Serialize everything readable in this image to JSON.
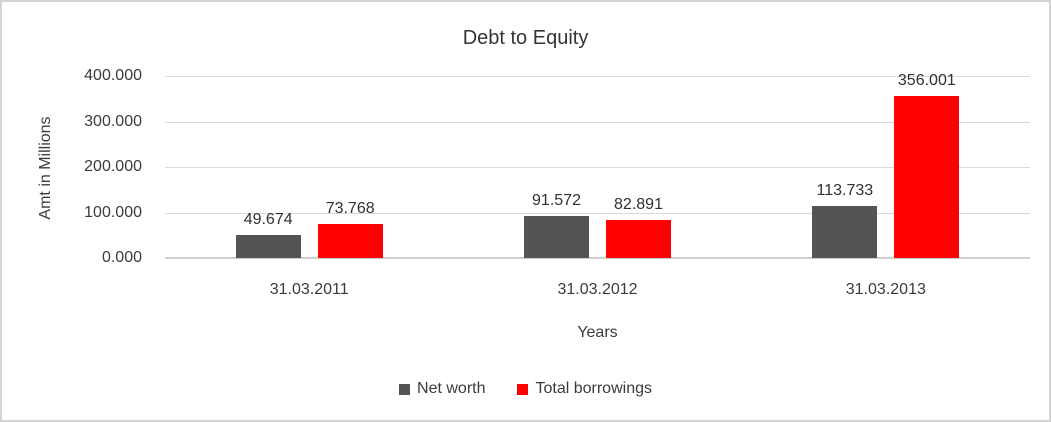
{
  "chart_data": {
    "type": "bar",
    "title": "Debt to Equity",
    "xlabel": "Years",
    "ylabel": "Amt in Millions",
    "categories": [
      "31.03.2011",
      "31.03.2012",
      "31.03.2013"
    ],
    "series": [
      {
        "name": "Net worth",
        "color": "#545454",
        "values": [
          49.674,
          91.572,
          113.733
        ],
        "labels": [
          "49.674",
          "91.572",
          "113.733"
        ]
      },
      {
        "name": "Total borrowings",
        "color": "#ff0000",
        "values": [
          73.768,
          82.891,
          356.001
        ],
        "labels": [
          "73.768",
          "82.891",
          "356.001"
        ]
      }
    ],
    "y_axis": {
      "ticks": [
        {
          "value": 0,
          "label": "0.000"
        },
        {
          "value": 100,
          "label": "100.000"
        },
        {
          "value": 200,
          "label": "200.000"
        },
        {
          "value": 300,
          "label": "300.000"
        },
        {
          "value": 400,
          "label": "400.000"
        }
      ]
    },
    "ylim": [
      0,
      400
    ],
    "grid": true,
    "legend_position": "bottom",
    "colors": {
      "grid": "#d9d9d9",
      "axis_line": "#cfcfcf",
      "frame_border": "#d3d3d3"
    }
  }
}
